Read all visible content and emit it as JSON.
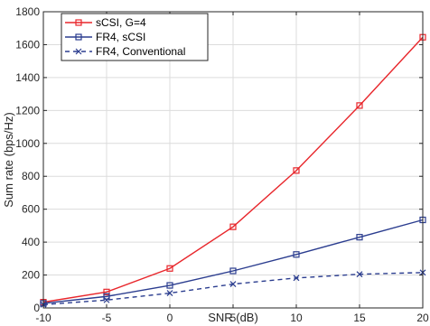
{
  "chart_data": {
    "type": "line",
    "xlabel": "SNR (dB)",
    "ylabel": "Sum rate (bps/Hz)",
    "xlim": [
      -10,
      20
    ],
    "ylim": [
      0,
      1800
    ],
    "xticks": [
      -10,
      -5,
      0,
      5,
      10,
      15,
      20
    ],
    "yticks": [
      0,
      200,
      400,
      600,
      800,
      1000,
      1200,
      1400,
      1600,
      1800
    ],
    "grid": true,
    "legend_position": "top-left",
    "x": [
      -10,
      -5,
      0,
      5,
      10,
      15,
      20
    ],
    "series": [
      {
        "name": "sCSI, G=4",
        "values": [
          35,
          97,
          240,
          493,
          835,
          1230,
          1645
        ],
        "color": "#e8262b",
        "line_style": "solid",
        "marker": "square"
      },
      {
        "name": "FR4, sCSI",
        "values": [
          28,
          70,
          137,
          225,
          325,
          430,
          535
        ],
        "color": "#2b3d8f",
        "line_style": "solid",
        "marker": "square"
      },
      {
        "name": "FR4, Conventional",
        "values": [
          20,
          48,
          90,
          145,
          182,
          205,
          215
        ],
        "color": "#2b3d8f",
        "line_style": "dashed",
        "marker": "x"
      }
    ]
  }
}
